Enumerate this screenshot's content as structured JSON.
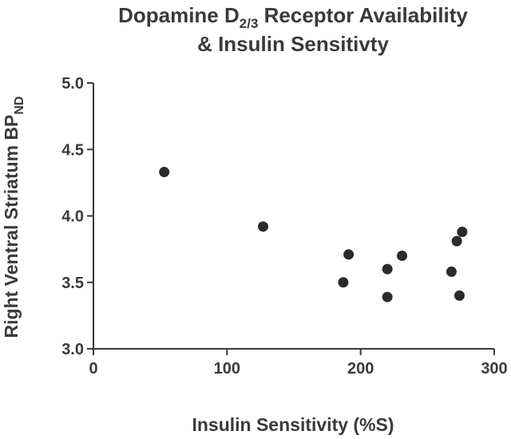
{
  "chart_data": {
    "type": "scatter",
    "title": {
      "line1_main": "Dopamine D",
      "line1_sub": "2/3",
      "line1_rest": " Receptor Availability",
      "line2": "& Insulin  Sensitivty"
    },
    "xlabel": "Insulin Sensitivity (%S)",
    "ylabel": {
      "main": "Right Ventral Striatum BP",
      "sub": "ND"
    },
    "xlim": [
      0,
      300
    ],
    "ylim": [
      3.0,
      5.0
    ],
    "xticks": [
      "0",
      "100",
      "200",
      "300"
    ],
    "yticks": [
      "3.0",
      "3.5",
      "4.0",
      "4.5",
      "5.0"
    ],
    "grid": false,
    "legend": "none",
    "marker_color": "#2b2b2b",
    "points": [
      {
        "x": 53,
        "y": 4.33
      },
      {
        "x": 127,
        "y": 3.92
      },
      {
        "x": 187,
        "y": 3.5
      },
      {
        "x": 191,
        "y": 3.71
      },
      {
        "x": 220,
        "y": 3.6
      },
      {
        "x": 220,
        "y": 3.39
      },
      {
        "x": 231,
        "y": 3.7
      },
      {
        "x": 268,
        "y": 3.58
      },
      {
        "x": 272,
        "y": 3.81
      },
      {
        "x": 274,
        "y": 3.4
      },
      {
        "x": 276,
        "y": 3.88
      }
    ]
  }
}
